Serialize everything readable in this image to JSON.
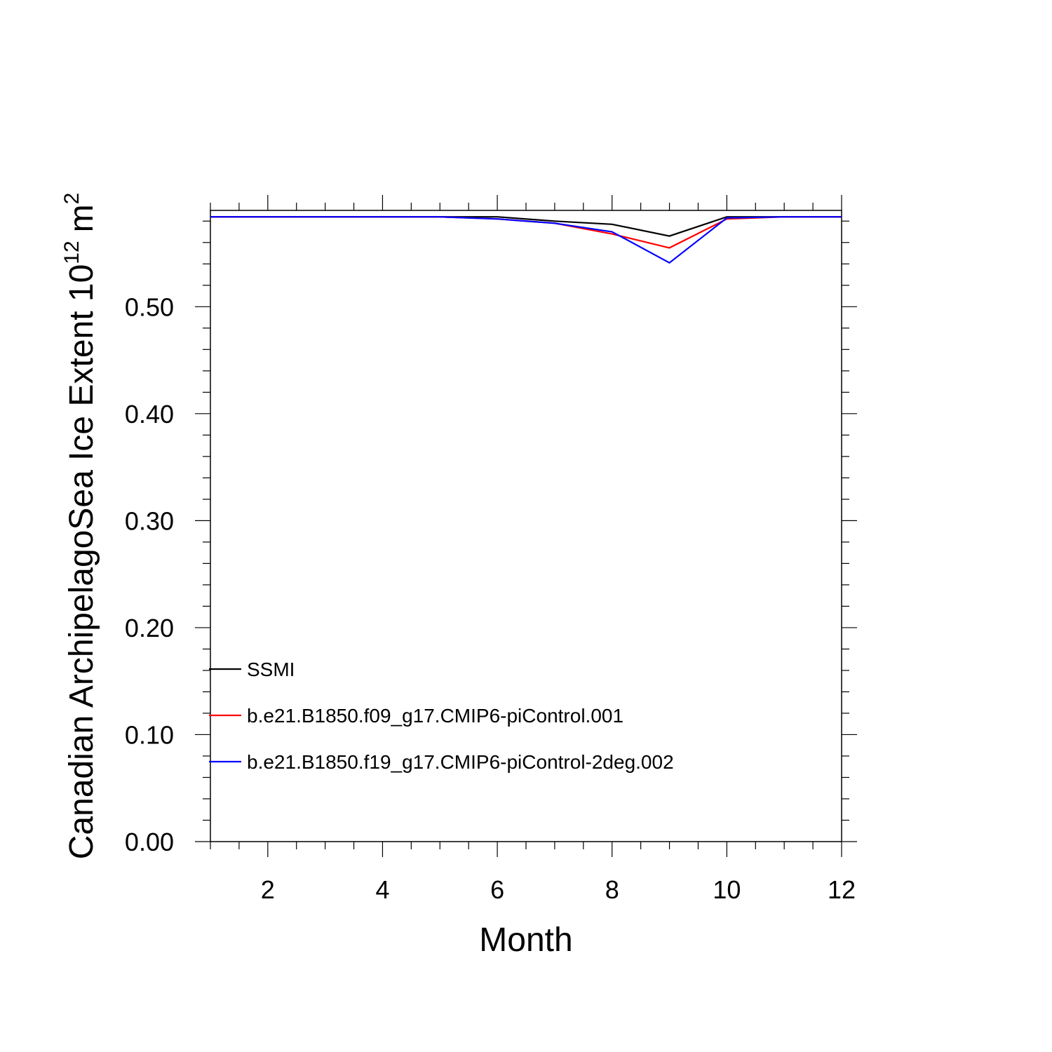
{
  "chart_data": {
    "type": "line",
    "xlabel": "Month",
    "ylabel": "Canadian ArchipelagoSea Ice Extent 10",
    "ylabel_superscript": "12",
    "ylabel_unit": "m",
    "ylabel_unit_superscript": "2",
    "xlim": [
      1,
      12
    ],
    "ylim": [
      0,
      0.59
    ],
    "x_ticks": [
      2,
      4,
      6,
      8,
      10,
      12
    ],
    "x_tick_labels": [
      "2",
      "4",
      "6",
      "8",
      "10",
      "12"
    ],
    "y_ticks": [
      0,
      0.1,
      0.2,
      0.3,
      0.4,
      0.5
    ],
    "y_tick_labels": [
      "0.00",
      "0.10",
      "0.20",
      "0.30",
      "0.40",
      "0.50"
    ],
    "legend_position": "bottom-left",
    "x": [
      1,
      2,
      3,
      4,
      5,
      6,
      7,
      8,
      9,
      10,
      11,
      12
    ],
    "series": [
      {
        "name": "SSMI",
        "color": "#000000",
        "values": [
          0.584,
          0.584,
          0.584,
          0.584,
          0.584,
          0.584,
          0.58,
          0.577,
          0.566,
          0.584,
          0.584,
          0.584
        ]
      },
      {
        "name": "b.e21.B1850.f09_g17.CMIP6-piControl.001",
        "color": "#ff0000",
        "values": [
          0.584,
          0.584,
          0.584,
          0.584,
          0.584,
          0.582,
          0.578,
          0.568,
          0.555,
          0.582,
          0.584,
          0.584
        ]
      },
      {
        "name": "b.e21.B1850.f19_g17.CMIP6-piControl-2deg.002",
        "color": "#0000ff",
        "values": [
          0.584,
          0.584,
          0.584,
          0.584,
          0.584,
          0.582,
          0.578,
          0.57,
          0.541,
          0.583,
          0.584,
          0.584
        ]
      }
    ]
  }
}
